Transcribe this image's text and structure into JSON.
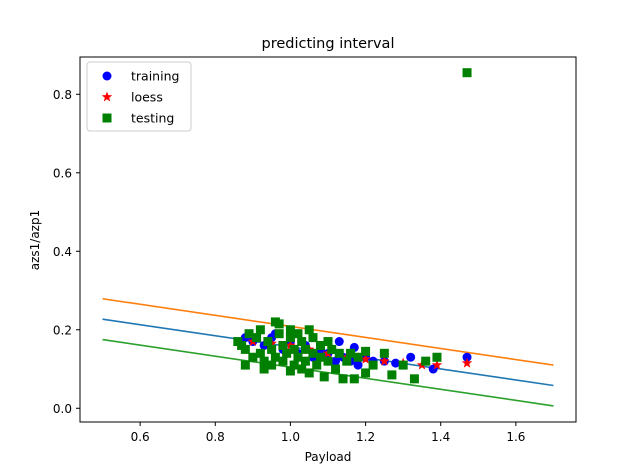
{
  "chart_data": {
    "type": "scatter",
    "title": "predicting interval",
    "xlabel": "Payload",
    "ylabel": "azs1/azp1",
    "xlim": [
      0.44,
      1.76
    ],
    "ylim": [
      -0.035,
      0.895
    ],
    "xticks": [
      0.6,
      0.8,
      1.0,
      1.2,
      1.4,
      1.6
    ],
    "yticks": [
      0.0,
      0.2,
      0.4,
      0.6,
      0.8
    ],
    "xtick_labels": [
      "0.6",
      "0.8",
      "1.0",
      "1.2",
      "1.4",
      "1.6"
    ],
    "ytick_labels": [
      "0.0",
      "0.2",
      "0.4",
      "0.6",
      "0.8"
    ],
    "grid": false,
    "legend_position": "top-left",
    "scatter_series": [
      {
        "name": "training",
        "marker": "circle",
        "color": "#0000ff",
        "points": [
          [
            0.88,
            0.18
          ],
          [
            0.9,
            0.17
          ],
          [
            0.93,
            0.16
          ],
          [
            0.95,
            0.18
          ],
          [
            0.96,
            0.19
          ],
          [
            0.98,
            0.15
          ],
          [
            1.0,
            0.17
          ],
          [
            1.02,
            0.14
          ],
          [
            1.04,
            0.16
          ],
          [
            1.06,
            0.13
          ],
          [
            1.08,
            0.15
          ],
          [
            1.1,
            0.14
          ],
          [
            1.12,
            0.12
          ],
          [
            1.13,
            0.17
          ],
          [
            1.14,
            0.13
          ],
          [
            1.16,
            0.12
          ],
          [
            1.17,
            0.155
          ],
          [
            1.18,
            0.11
          ],
          [
            1.2,
            0.13
          ],
          [
            1.22,
            0.12
          ],
          [
            1.25,
            0.12
          ],
          [
            1.28,
            0.115
          ],
          [
            1.32,
            0.13
          ],
          [
            1.38,
            0.1
          ],
          [
            1.47,
            0.13
          ]
        ]
      },
      {
        "name": "loess",
        "marker": "star",
        "color": "#ff0000",
        "points": [
          [
            0.9,
            0.17
          ],
          [
            0.95,
            0.165
          ],
          [
            1.0,
            0.16
          ],
          [
            1.05,
            0.15
          ],
          [
            1.1,
            0.14
          ],
          [
            1.15,
            0.13
          ],
          [
            1.2,
            0.125
          ],
          [
            1.25,
            0.12
          ],
          [
            1.3,
            0.115
          ],
          [
            1.35,
            0.11
          ],
          [
            1.39,
            0.11
          ],
          [
            1.47,
            0.115
          ]
        ]
      },
      {
        "name": "testing",
        "marker": "square",
        "color": "#008000",
        "points": [
          [
            0.86,
            0.17
          ],
          [
            0.87,
            0.16
          ],
          [
            0.88,
            0.15
          ],
          [
            0.88,
            0.11
          ],
          [
            0.89,
            0.19
          ],
          [
            0.9,
            0.13
          ],
          [
            0.91,
            0.18
          ],
          [
            0.92,
            0.14
          ],
          [
            0.92,
            0.2
          ],
          [
            0.93,
            0.12
          ],
          [
            0.93,
            0.1
          ],
          [
            0.94,
            0.17
          ],
          [
            0.95,
            0.15
          ],
          [
            0.95,
            0.11
          ],
          [
            0.96,
            0.22
          ],
          [
            0.96,
            0.13
          ],
          [
            0.97,
            0.215
          ],
          [
            0.97,
            0.19
          ],
          [
            0.98,
            0.16
          ],
          [
            0.98,
            0.12
          ],
          [
            0.99,
            0.14
          ],
          [
            1.0,
            0.2
          ],
          [
            1.0,
            0.18
          ],
          [
            1.0,
            0.095
          ],
          [
            1.01,
            0.15
          ],
          [
            1.01,
            0.11
          ],
          [
            1.02,
            0.19
          ],
          [
            1.02,
            0.13
          ],
          [
            1.03,
            0.17
          ],
          [
            1.03,
            0.1
          ],
          [
            1.04,
            0.15
          ],
          [
            1.04,
            0.12
          ],
          [
            1.05,
            0.2
          ],
          [
            1.05,
            0.09
          ],
          [
            1.06,
            0.18
          ],
          [
            1.06,
            0.14
          ],
          [
            1.07,
            0.11
          ],
          [
            1.08,
            0.16
          ],
          [
            1.08,
            0.13
          ],
          [
            1.09,
            0.08
          ],
          [
            1.1,
            0.17
          ],
          [
            1.1,
            0.12
          ],
          [
            1.11,
            0.15
          ],
          [
            1.12,
            0.1
          ],
          [
            1.13,
            0.14
          ],
          [
            1.14,
            0.075
          ],
          [
            1.15,
            0.12
          ],
          [
            1.16,
            0.14
          ],
          [
            1.17,
            0.075
          ],
          [
            1.18,
            0.13
          ],
          [
            1.2,
            0.145
          ],
          [
            1.2,
            0.09
          ],
          [
            1.22,
            0.11
          ],
          [
            1.25,
            0.14
          ],
          [
            1.27,
            0.085
          ],
          [
            1.3,
            0.11
          ],
          [
            1.33,
            0.075
          ],
          [
            1.36,
            0.12
          ],
          [
            1.39,
            0.13
          ],
          [
            1.47,
            0.855
          ]
        ]
      }
    ],
    "line_series": [
      {
        "color": "#1f77b4",
        "x": [
          0.5,
          1.7
        ],
        "y": [
          0.227,
          0.058
        ]
      },
      {
        "color": "#ff7f0e",
        "x": [
          0.5,
          1.7
        ],
        "y": [
          0.279,
          0.11
        ]
      },
      {
        "color": "#2ca02c",
        "x": [
          0.5,
          1.7
        ],
        "y": [
          0.175,
          0.006
        ]
      }
    ]
  }
}
